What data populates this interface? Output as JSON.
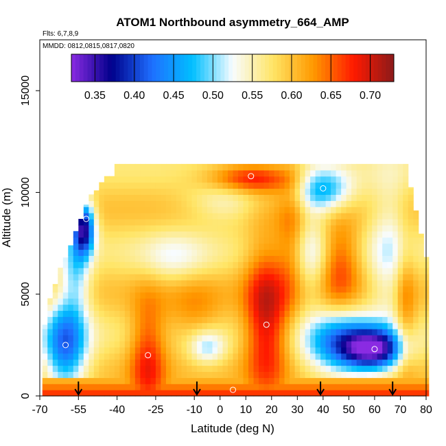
{
  "chart_data": {
    "type": "heatmap",
    "title": "ATOM1 Northbound asymmetry_664_AMP",
    "subtitle_flights": "Flts: 6,7,8,9",
    "subtitle_dates": "MMDD: 0812,0815,0817,0820",
    "xlabel": "Latitude (deg N)",
    "ylabel": "Altitude (m)",
    "xlim": [
      -70,
      80
    ],
    "ylim": [
      0,
      17500
    ],
    "x_ticks": [
      "-70",
      "-55",
      "-40",
      "-25",
      "-10",
      "0",
      "10",
      "20",
      "30",
      "40",
      "50",
      "60",
      "70",
      "80"
    ],
    "x_tick_values": [
      -70,
      -55,
      -40,
      -25,
      -10,
      0,
      10,
      20,
      30,
      40,
      50,
      60,
      70,
      80
    ],
    "y_ticks": [
      "0",
      "5000",
      "10000",
      "15000"
    ],
    "y_tick_values": [
      0,
      5000,
      10000,
      15000
    ],
    "colorbar": {
      "min": 0.32,
      "max": 0.73,
      "ticks": [
        "0.35",
        "0.40",
        "0.45",
        "0.50",
        "0.55",
        "0.60",
        "0.65",
        "0.70"
      ],
      "tick_values": [
        0.35,
        0.4,
        0.45,
        0.5,
        0.55,
        0.6,
        0.65,
        0.7
      ],
      "colors": [
        "#8a2be2",
        "#00008b",
        "#1e6fff",
        "#00bfff",
        "#f8fcff",
        "#ffe566",
        "#ff9900",
        "#ff1a00",
        "#8b1a1a"
      ]
    },
    "profile_markers_lat": [
      -55,
      -9,
      39,
      67
    ],
    "grid": false,
    "coverage": {
      "lat_edges": [
        -69,
        -68,
        -66,
        -64,
        -62,
        -60,
        -58,
        -56,
        -54,
        -52,
        -50,
        -48,
        -46,
        -44,
        -41
      ],
      "alt_top": [
        3500,
        3500,
        4800,
        5500,
        6300,
        6800,
        7400,
        8100,
        8700,
        9400,
        9900,
        10100,
        10500,
        10800,
        11400
      ]
    },
    "field_samples": [
      {
        "lat": -60,
        "alt": 2500,
        "value": 0.45
      },
      {
        "lat": -52,
        "alt": 8700,
        "value": 0.38
      },
      {
        "lat": -28,
        "alt": 2000,
        "value": 0.68
      },
      {
        "lat": 18,
        "alt": 3500,
        "value": 0.7
      },
      {
        "lat": 12,
        "alt": 10800,
        "value": 0.66
      },
      {
        "lat": 60,
        "alt": 2300,
        "value": 0.41
      },
      {
        "lat": 40,
        "alt": 10200,
        "value": 0.45
      },
      {
        "lat": 5,
        "alt": 300,
        "value": 0.7
      }
    ]
  }
}
